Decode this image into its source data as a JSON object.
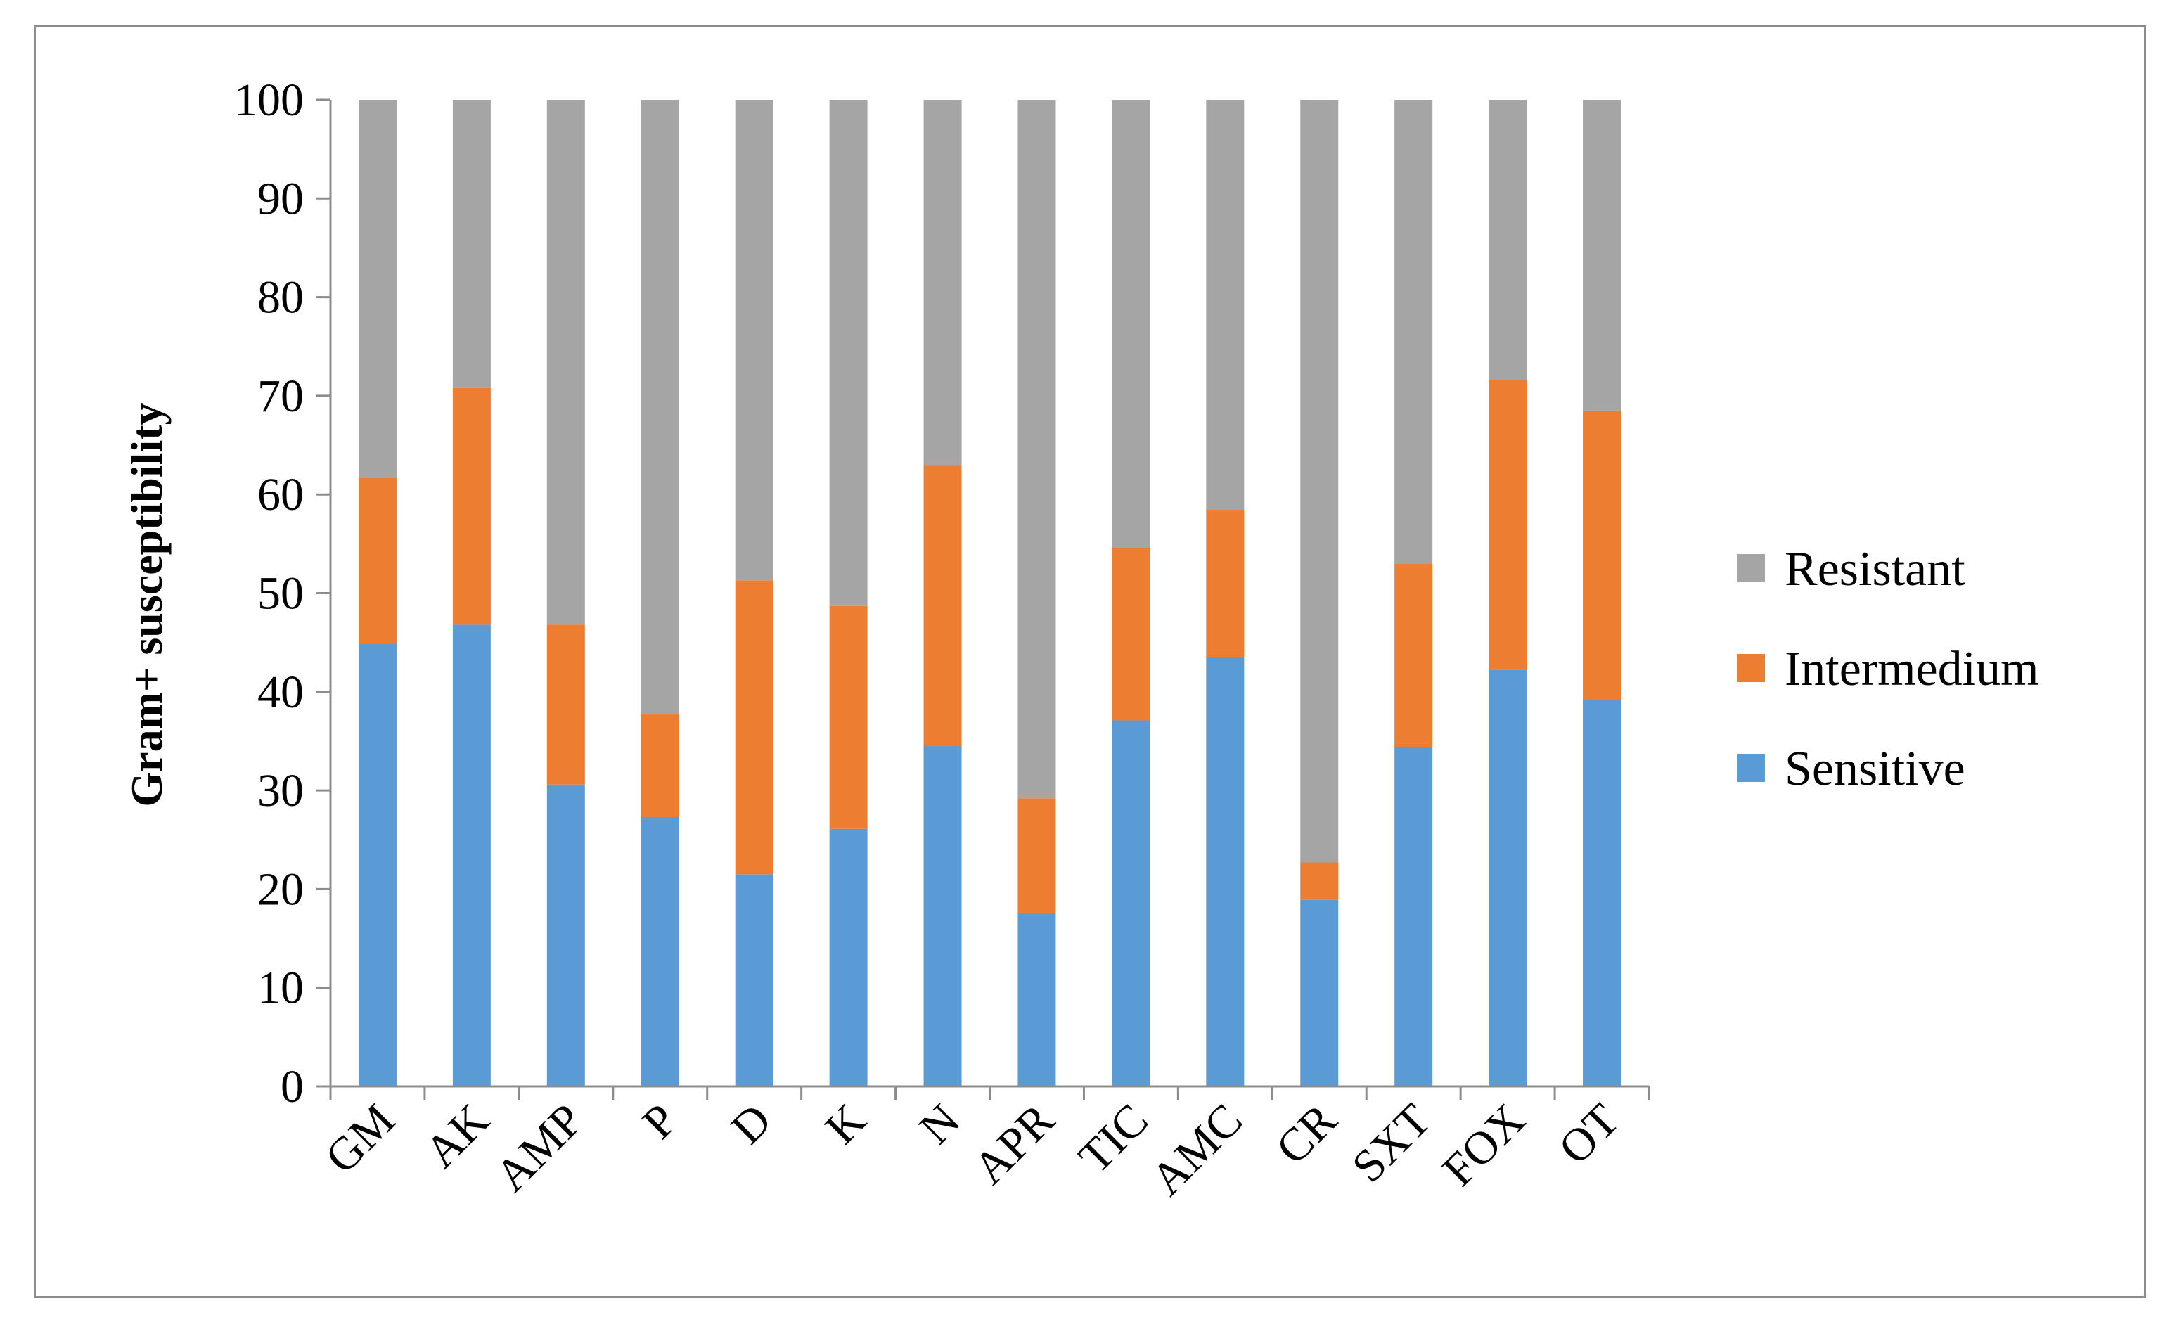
{
  "chart_data": {
    "type": "bar",
    "stacked": true,
    "categories": [
      "GM",
      "AK",
      "AMP",
      "P",
      "D",
      "K",
      "N",
      "APR",
      "TIC",
      "AMC",
      "CR",
      "SXT",
      "FOX",
      "OT"
    ],
    "series": [
      {
        "name": "Sensitive",
        "color": "#5b9bd5",
        "values": [
          44.9,
          46.8,
          30.6,
          27.3,
          21.5,
          26.1,
          34.5,
          17.6,
          37.1,
          43.5,
          18.9,
          34.4,
          42.2,
          39.2
        ]
      },
      {
        "name": "Intermedium",
        "color": "#ed7d31",
        "values": [
          16.8,
          24.0,
          16.2,
          10.4,
          29.8,
          22.6,
          28.5,
          11.6,
          17.5,
          15.0,
          3.8,
          18.6,
          29.4,
          29.3
        ]
      },
      {
        "name": "Resistant",
        "color": "#a5a5a5",
        "values": [
          38.3,
          29.2,
          53.2,
          62.3,
          48.7,
          51.3,
          37.0,
          70.8,
          45.4,
          41.5,
          77.3,
          47.0,
          28.4,
          31.5
        ]
      }
    ],
    "ylabel": "Gram+ susceptibility",
    "xlabel": "",
    "ylim": [
      0,
      100
    ],
    "yticks": [
      "0",
      "10",
      "20",
      "30",
      "40",
      "50",
      "60",
      "70",
      "80",
      "90",
      "100"
    ],
    "grid": false,
    "legend": {
      "position": "right",
      "order": [
        "Resistant",
        "Intermedium",
        "Sensitive"
      ]
    }
  }
}
